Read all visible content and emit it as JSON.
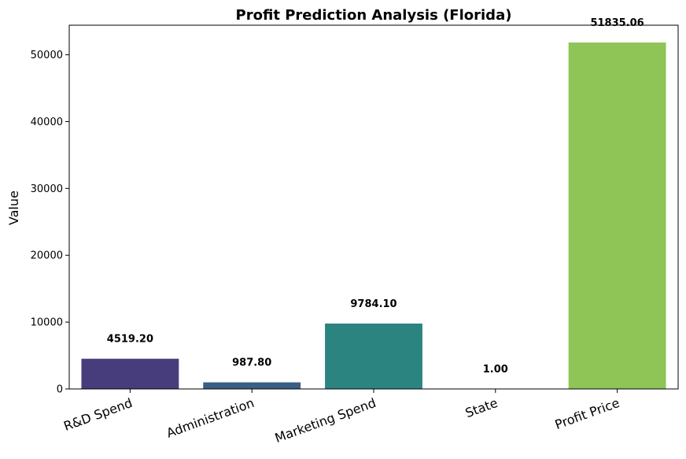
{
  "chart_data": {
    "type": "bar",
    "title": "Profit Prediction Analysis (Florida)",
    "xlabel": "",
    "ylabel": "Value",
    "categories": [
      "R&D Spend",
      "Administration",
      "Marketing Spend",
      "State",
      "Profit Price"
    ],
    "values": [
      4519.2,
      987.8,
      9784.1,
      1.0,
      51835.06
    ],
    "value_labels": [
      "4519.20",
      "987.80",
      "9784.10",
      "1.00",
      "51835.06"
    ],
    "colors": [
      "#483d7c",
      "#3a5f86",
      "#2c8481",
      "#21918c",
      "#8ec556"
    ],
    "ylim": [
      0,
      54428
    ],
    "yticks": [
      0,
      10000,
      20000,
      30000,
      40000,
      50000
    ],
    "grid": false,
    "legend": "none"
  }
}
